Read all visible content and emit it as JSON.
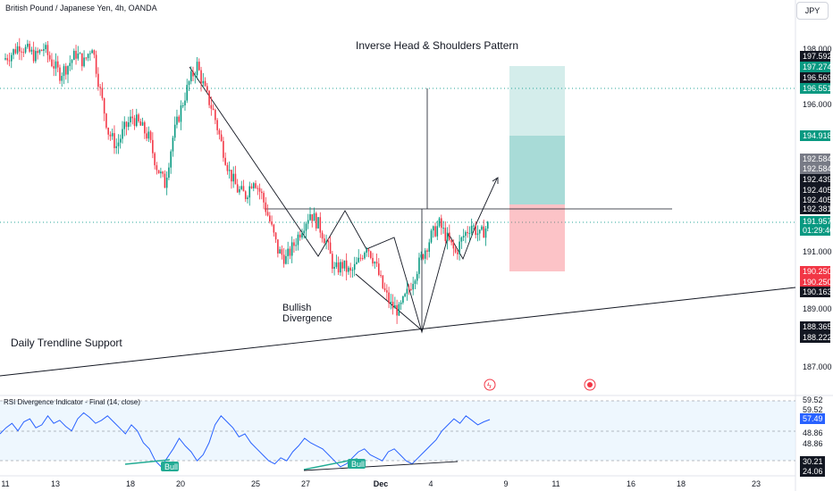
{
  "header": {
    "symbol_title": "British Pound / Japanese Yen, 4h, OANDA",
    "currency_button": "JPY"
  },
  "annotations": {
    "pattern": "Inverse Head & Shoulders Pattern",
    "divergence_line1": "Bullish",
    "divergence_line2": "Divergence",
    "trendline": "Daily Trendline Support"
  },
  "price_axis": {
    "ticks": [
      "198.000",
      "196.000",
      "191.000",
      "189.000",
      "187.000"
    ],
    "tags": [
      {
        "text": "197.592",
        "color": "#131722"
      },
      {
        "text": "197.274",
        "color": "#089981"
      },
      {
        "text": "196.569",
        "color": "#131722"
      },
      {
        "text": "196.551",
        "color": "#089981"
      },
      {
        "text": "194.918",
        "color": "#089981"
      },
      {
        "text": "192.584",
        "color": "#787b86"
      },
      {
        "text": "192.584",
        "color": "#787b86"
      },
      {
        "text": "192.439",
        "color": "#131722"
      },
      {
        "text": "192.405",
        "color": "#131722"
      },
      {
        "text": "192.405",
        "color": "#131722"
      },
      {
        "text": "192.381",
        "color": "#131722"
      },
      {
        "text": "191.957",
        "color": "#089981"
      },
      {
        "text": "01:29:40",
        "color": "#089981"
      },
      {
        "text": "190.250",
        "color": "#f23645"
      },
      {
        "text": "190.250",
        "color": "#f23645"
      },
      {
        "text": "190.163",
        "color": "#131722"
      },
      {
        "text": "188.365",
        "color": "#131722"
      },
      {
        "text": "188.222",
        "color": "#131722"
      }
    ]
  },
  "rsi_panel": {
    "title": "RSI Divergence Indicator - Final (14, close)",
    "ticks": [
      "59.52",
      "59.52",
      "48.86",
      "48.86"
    ],
    "tags": [
      {
        "text": "57.49",
        "color": "#2962ff"
      },
      {
        "text": "30.21",
        "color": "#131722"
      },
      {
        "text": "24.06",
        "color": "#131722"
      }
    ],
    "bull_labels": [
      "Bull",
      "Bull"
    ]
  },
  "time_axis": {
    "labels": [
      "11",
      "13",
      "18",
      "20",
      "25",
      "27",
      "Dec",
      "4",
      "9",
      "11",
      "16",
      "18",
      "23"
    ]
  },
  "colors": {
    "up": "#089981",
    "down": "#f23645",
    "rsi_line": "#2962ff",
    "rsi_band": "#e3f2fd",
    "target_zone": "#26a69a",
    "stop_zone": "#f7525f"
  },
  "chart_data": {
    "type": "candlestick",
    "title": "British Pound / Japanese Yen, 4h, OANDA",
    "y_range": [
      186.3,
      199.2
    ],
    "x_dates": [
      "Nov 11",
      "Nov 13",
      "Nov 18",
      "Nov 20",
      "Nov 25",
      "Nov 27",
      "Dec",
      "Dec 4",
      "Dec 9",
      "Dec 11",
      "Dec 16",
      "Dec 18",
      "Dec 23"
    ],
    "close_path": [
      197.7,
      197.9,
      198.2,
      198.0,
      197.8,
      198.1,
      197.6,
      197.2,
      197.5,
      197.9,
      197.6,
      198.2,
      196.6,
      195.2,
      194.7,
      195.3,
      195.7,
      195.4,
      195.0,
      194.0,
      193.4,
      195.0,
      196.0,
      196.9,
      197.5,
      196.6,
      195.9,
      194.8,
      193.8,
      193.2,
      193.0,
      193.6,
      193.0,
      192.1,
      191.1,
      190.8,
      191.3,
      191.9,
      192.4,
      192.0,
      191.4,
      190.4,
      190.6,
      190.3,
      190.7,
      191.3,
      190.7,
      189.8,
      189.2,
      189.0,
      189.6,
      190.3,
      191.0,
      191.6,
      192.0,
      191.5,
      191.0,
      191.6,
      192.0,
      191.6,
      191.96
    ],
    "key_levels": {
      "last_price": 191.957,
      "neckline": 192.405,
      "target_1": 194.918,
      "target_2": 197.274,
      "stop": 190.25,
      "head_low": 188.222
    },
    "rsi": {
      "range": [
        20,
        70
      ],
      "levels": [
        59.52,
        48.86,
        30.21
      ],
      "last": 57.49
    }
  }
}
